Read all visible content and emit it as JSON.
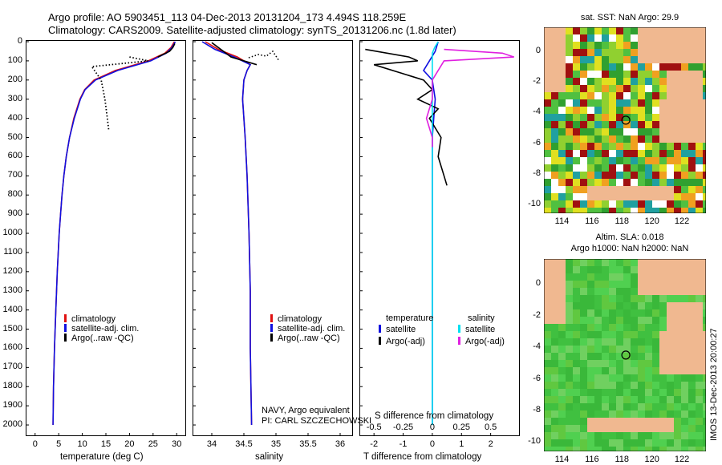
{
  "header": {
    "title_line1": "Argo profile: AO 5903451_113 04-Dec-2013 20131204_173 4.494S 118.259E",
    "title_line2": "Climatology: CARS2009. Satellite-adjusted climatology: synTS_20131206.nc (1.8d later)"
  },
  "colors": {
    "climatology": "#e01010",
    "satellite": "#1010e0",
    "argo": "#000000",
    "sat_salinity": "#00e0f0",
    "argo_salinity": "#e020e0",
    "land": "#f0b890",
    "sea_green": "#40c040"
  },
  "chart_data": [
    {
      "type": "line",
      "panel": "temperature",
      "xlabel": "temperature (deg C)",
      "ylabel": "",
      "xlim": [
        -2,
        32
      ],
      "ylim": [
        2050,
        0
      ],
      "xticks": [
        "0",
        "5",
        "10",
        "15",
        "20",
        "25",
        "30"
      ],
      "yticks": [
        "0",
        "100",
        "200",
        "300",
        "400",
        "500",
        "600",
        "700",
        "800",
        "900",
        "1000",
        "1100",
        "1200",
        "1300",
        "1400",
        "1500",
        "1600",
        "1700",
        "1800",
        "1900",
        "2000"
      ],
      "series": [
        {
          "name": "climatology",
          "depth": [
            0,
            30,
            60,
            100,
            150,
            200,
            250,
            300,
            400,
            500,
            600,
            700,
            800,
            900,
            1000,
            1200,
            1400,
            1600,
            1800,
            2000
          ],
          "values": [
            29.5,
            28.8,
            27.5,
            24.0,
            17.0,
            12.5,
            10.5,
            9.5,
            8.2,
            7.3,
            6.6,
            6.1,
            5.7,
            5.4,
            5.1,
            4.7,
            4.4,
            4.1,
            3.9,
            3.8
          ]
        },
        {
          "name": "satellite-adj. clim.",
          "depth": [
            0,
            30,
            60,
            100,
            150,
            200,
            250,
            300,
            400,
            500,
            600,
            700,
            800,
            900,
            1000,
            1200,
            1400,
            1600,
            1800,
            2000
          ],
          "values": [
            29.7,
            29.0,
            27.8,
            24.5,
            17.5,
            12.8,
            10.6,
            9.6,
            8.3,
            7.3,
            6.6,
            6.1,
            5.7,
            5.4,
            5.1,
            4.7,
            4.4,
            4.1,
            3.9,
            3.8
          ]
        },
        {
          "name": "Argo(..raw -QC)",
          "depth": [
            10,
            30,
            50,
            80
          ],
          "values": [
            29.6,
            29.2,
            28.5,
            26.0
          ]
        },
        {
          "name": "Argo raw dotted",
          "depth": [
            80,
            90,
            100,
            130,
            200,
            300,
            400,
            460
          ],
          "values": [
            20.0,
            22.0,
            24.0,
            12.0,
            14.0,
            14.8,
            15.3,
            15.6
          ]
        }
      ],
      "legend": [
        "climatology",
        "satellite-adj. clim.",
        "Argo(..raw -QC)"
      ]
    },
    {
      "type": "line",
      "panel": "salinity",
      "xlabel": "salinity",
      "xlim": [
        33.7,
        36.2
      ],
      "ylim": [
        2050,
        0
      ],
      "xticks": [
        "34",
        "34.5",
        "35",
        "35.5",
        "36"
      ],
      "series": [
        {
          "name": "climatology",
          "depth": [
            0,
            40,
            80,
            120,
            150,
            200,
            300,
            400,
            500,
            700,
            1000,
            1300,
            1600,
            2000
          ],
          "values": [
            33.9,
            34.1,
            34.4,
            34.6,
            34.55,
            34.5,
            34.48,
            34.5,
            34.52,
            34.55,
            34.58,
            34.6,
            34.6,
            34.62
          ]
        },
        {
          "name": "satellite-adj. clim.",
          "depth": [
            0,
            40,
            80,
            120,
            150,
            200,
            300,
            400,
            500,
            700,
            1000,
            1300,
            1600,
            2000
          ],
          "values": [
            33.85,
            34.05,
            34.35,
            34.6,
            34.55,
            34.5,
            34.48,
            34.5,
            34.52,
            34.55,
            34.58,
            34.6,
            34.6,
            34.62
          ]
        },
        {
          "name": "Argo(..raw -QC)",
          "depth": [
            5,
            80,
            120
          ],
          "values": [
            34.0,
            34.3,
            34.7
          ]
        }
      ],
      "legend": [
        "climatology",
        "satellite-adj. clim.",
        "Argo(..raw -QC)"
      ],
      "annotation_line1": "NAVY, Argo equivalent",
      "annotation_line2": "PI: CARL SZCZECHOWSKI"
    },
    {
      "type": "line",
      "panel": "difference",
      "xlabel_top": "S difference from climatology",
      "xlabel": "T difference from climatology",
      "xlim_t": [
        -2.5,
        3
      ],
      "xticks_t": [
        "-2",
        "-1",
        "0",
        "1",
        "2"
      ],
      "xticks_s": [
        "-0.5",
        "-0.25",
        "0",
        "0.25",
        "0.5"
      ],
      "series": [
        {
          "name": "temperature satellite",
          "depth": [
            0,
            50,
            100,
            150,
            200,
            300,
            500,
            800,
            1000,
            1500,
            2000
          ],
          "values": [
            0.2,
            0.1,
            -0.1,
            -0.3,
            0.0,
            0.1,
            0.0,
            0.0,
            0.0,
            0.0,
            0.0
          ]
        },
        {
          "name": "temperature Argo(-adj)",
          "depth": [
            40,
            80,
            100,
            120,
            200,
            250,
            300,
            350,
            400,
            500,
            600,
            700,
            750
          ],
          "values": [
            -2.3,
            -0.8,
            -0.5,
            -2.0,
            -0.3,
            0.0,
            -0.5,
            0.2,
            -0.1,
            0.3,
            0.2,
            0.4,
            0.5
          ]
        },
        {
          "name": "salinity satellite",
          "depth": [
            0,
            30,
            60,
            100,
            200,
            400,
            600,
            1000,
            1500,
            2000
          ],
          "values": [
            0.05,
            0.02,
            0.0,
            0.0,
            0.0,
            0.0,
            0.0,
            0.0,
            0.0,
            0.0
          ]
        },
        {
          "name": "salinity Argo(-adj)",
          "depth": [
            40,
            60,
            80,
            100,
            200,
            300,
            400,
            500,
            550
          ],
          "values": [
            0.1,
            0.6,
            0.7,
            0.1,
            0.0,
            0.0,
            -0.05,
            0.0,
            0.0
          ]
        }
      ],
      "legend": {
        "temperature_heading": "temperature",
        "salinity_heading": "salinity",
        "t_satellite": "satellite",
        "t_argo": "Argo(-adj)",
        "s_satellite": "satellite",
        "s_argo": "Argo(-adj)"
      }
    },
    {
      "type": "heatmap",
      "panel": "sst_map",
      "title": "sat. SST: NaN Argo: 29.9",
      "xticks": [
        "114",
        "116",
        "118",
        "120",
        "122"
      ],
      "yticks": [
        "0",
        "-2",
        "-4",
        "-6",
        "-8",
        "-10"
      ],
      "marker": {
        "lon": 118.259,
        "lat": -4.494
      }
    },
    {
      "type": "heatmap",
      "panel": "sla_map",
      "title_line1": "Altim. SLA: 0.018",
      "title_line2": "Argo h1000: NaN h2000: NaN",
      "xticks": [
        "114",
        "116",
        "118",
        "120",
        "122"
      ],
      "yticks": [
        "0",
        "-2",
        "-4",
        "-6",
        "-8",
        "-10"
      ],
      "marker": {
        "lon": 118.259,
        "lat": -4.494
      }
    }
  ],
  "footer": {
    "stamp": "IMOS 13-Dec-2013 20:00:27"
  }
}
